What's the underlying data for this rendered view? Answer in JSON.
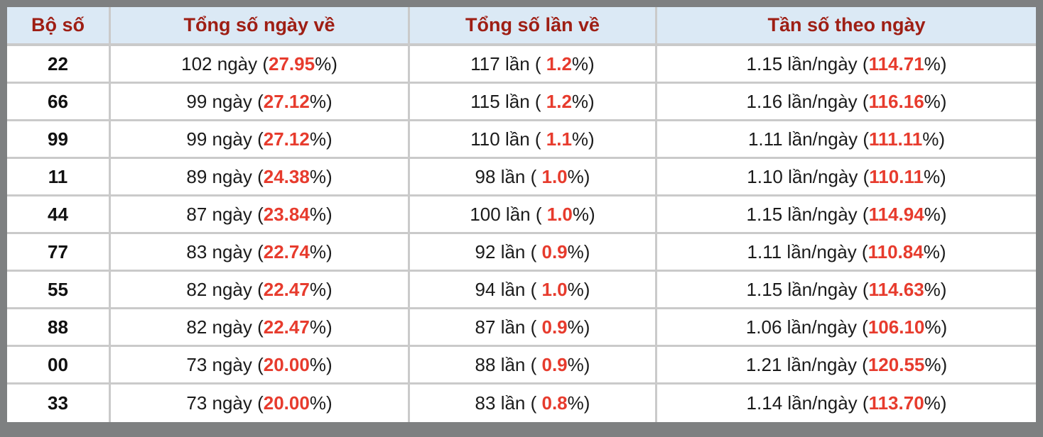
{
  "table": {
    "columns": [
      "Bộ số",
      "Tổng số ngày về",
      "Tổng số lần về",
      "Tần số theo ngày"
    ],
    "rows": [
      {
        "pair": "22",
        "days_pre": "102 ngày (",
        "days_red": "27.95",
        "days_post": "%)",
        "times_pre": "117 lần ( ",
        "times_red": "1.2",
        "times_post": "%)",
        "freq_pre": "1.15 lần/ngày (",
        "freq_red": "114.71",
        "freq_post": "%)"
      },
      {
        "pair": "66",
        "days_pre": "99 ngày (",
        "days_red": "27.12",
        "days_post": "%)",
        "times_pre": "115 lần ( ",
        "times_red": "1.2",
        "times_post": "%)",
        "freq_pre": "1.16 lần/ngày (",
        "freq_red": "116.16",
        "freq_post": "%)"
      },
      {
        "pair": "99",
        "days_pre": "99 ngày (",
        "days_red": "27.12",
        "days_post": "%)",
        "times_pre": "110 lần ( ",
        "times_red": "1.1",
        "times_post": "%)",
        "freq_pre": "1.11 lần/ngày (",
        "freq_red": "111.11",
        "freq_post": "%)"
      },
      {
        "pair": "11",
        "days_pre": "89 ngày (",
        "days_red": "24.38",
        "days_post": "%)",
        "times_pre": "98 lần ( ",
        "times_red": "1.0",
        "times_post": "%)",
        "freq_pre": "1.10 lần/ngày (",
        "freq_red": "110.11",
        "freq_post": "%)"
      },
      {
        "pair": "44",
        "days_pre": "87 ngày (",
        "days_red": "23.84",
        "days_post": "%)",
        "times_pre": "100 lần ( ",
        "times_red": "1.0",
        "times_post": "%)",
        "freq_pre": "1.15 lần/ngày (",
        "freq_red": "114.94",
        "freq_post": "%)"
      },
      {
        "pair": "77",
        "days_pre": "83 ngày (",
        "days_red": "22.74",
        "days_post": "%)",
        "times_pre": "92 lần ( ",
        "times_red": "0.9",
        "times_post": "%)",
        "freq_pre": "1.11 lần/ngày (",
        "freq_red": "110.84",
        "freq_post": "%)"
      },
      {
        "pair": "55",
        "days_pre": "82 ngày (",
        "days_red": "22.47",
        "days_post": "%)",
        "times_pre": "94 lần ( ",
        "times_red": "1.0",
        "times_post": "%)",
        "freq_pre": "1.15 lần/ngày (",
        "freq_red": "114.63",
        "freq_post": "%)"
      },
      {
        "pair": "88",
        "days_pre": "82 ngày (",
        "days_red": "22.47",
        "days_post": "%)",
        "times_pre": "87 lần ( ",
        "times_red": "0.9",
        "times_post": "%)",
        "freq_pre": "1.06 lần/ngày (",
        "freq_red": "106.10",
        "freq_post": "%)"
      },
      {
        "pair": "00",
        "days_pre": "73 ngày (",
        "days_red": "20.00",
        "days_post": "%)",
        "times_pre": "88 lần ( ",
        "times_red": "0.9",
        "times_post": "%)",
        "freq_pre": "1.21 lần/ngày (",
        "freq_red": "120.55",
        "freq_post": "%)"
      },
      {
        "pair": "33",
        "days_pre": "73 ngày (",
        "days_red": "20.00",
        "days_post": "%)",
        "times_pre": "83 lần ( ",
        "times_red": "0.8",
        "times_post": "%)",
        "freq_pre": "1.14 lần/ngày (",
        "freq_red": "113.70",
        "freq_post": "%)"
      }
    ]
  },
  "colors": {
    "page_bg": "#7e8081",
    "header_bg": "#dbe9f5",
    "header_text": "#9e1e14",
    "highlight_red": "#e73b2d",
    "row_border": "#cacaca",
    "body_text": "#1b1b1b"
  }
}
